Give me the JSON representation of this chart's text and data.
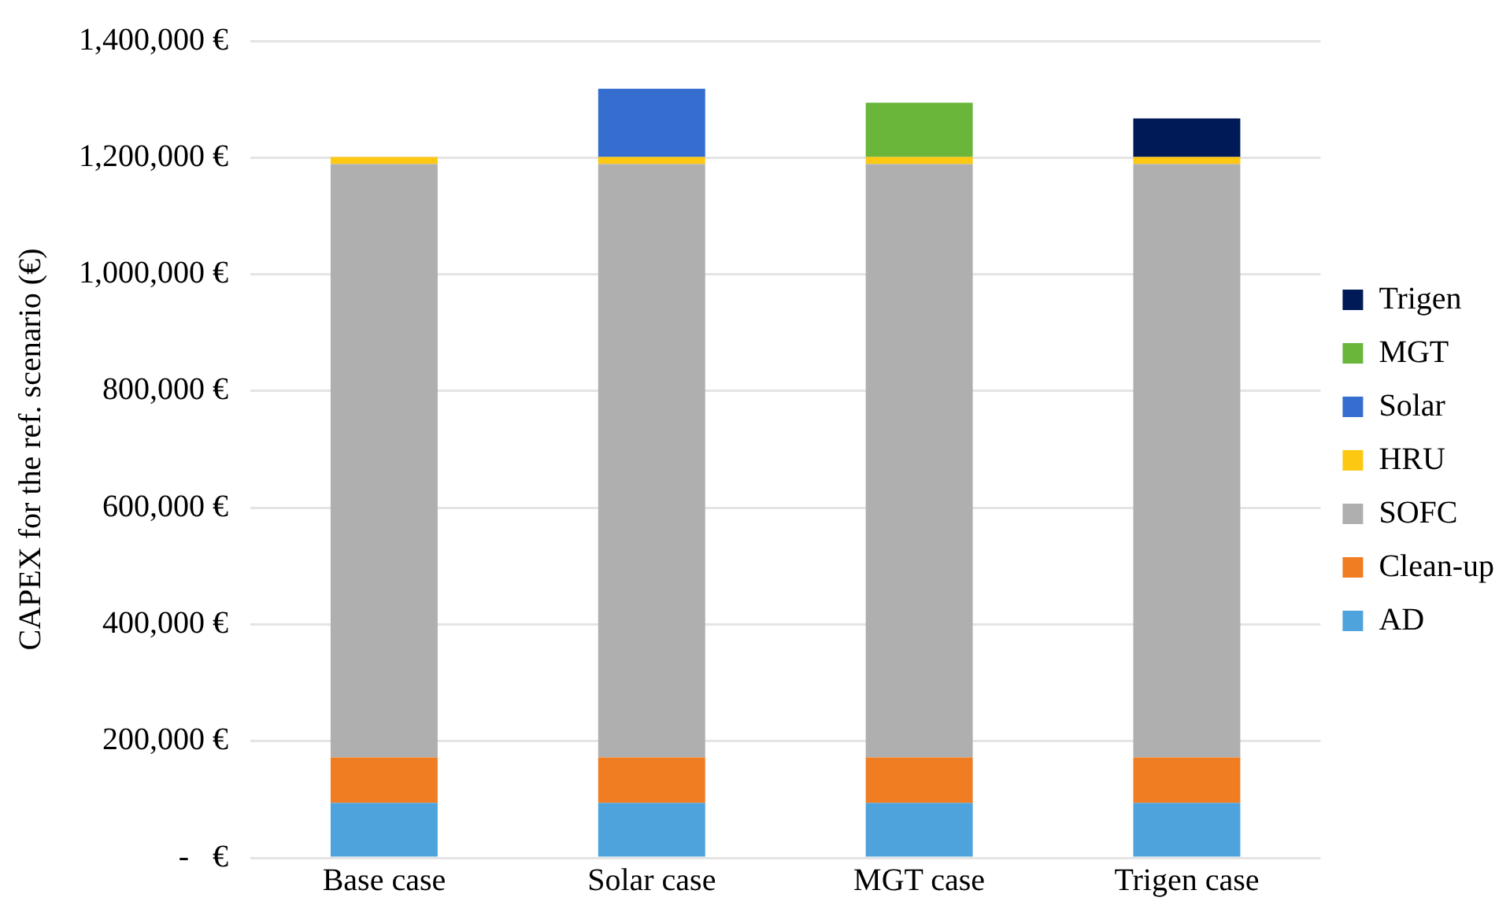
{
  "chart_data": {
    "type": "bar",
    "stacked": true,
    "ylabel": "CAPEX for the ref. scenario (€)",
    "categories": [
      "Base case",
      "Solar case",
      "MGT case",
      "Trigen case"
    ],
    "series": [
      {
        "name": "AD",
        "color": "#4ea3dd",
        "values": [
          94000,
          94000,
          94000,
          94000
        ]
      },
      {
        "name": "Clean-up",
        "color": "#f07d22",
        "values": [
          78000,
          78000,
          78000,
          78000
        ]
      },
      {
        "name": "SOFC",
        "color": "#afafaf",
        "values": [
          1017000,
          1017000,
          1017000,
          1017000
        ]
      },
      {
        "name": "HRU",
        "color": "#fcc812",
        "values": [
          12000,
          12000,
          12000,
          12000
        ]
      },
      {
        "name": "Solar",
        "color": "#356ecf",
        "values": [
          null,
          117000,
          null,
          null
        ]
      },
      {
        "name": "MGT",
        "color": "#69b63b",
        "values": [
          null,
          null,
          93000,
          null
        ]
      },
      {
        "name": "Trigen",
        "color": "#001a57",
        "values": [
          null,
          null,
          null,
          66000
        ]
      }
    ],
    "ylim": [
      0,
      1400000
    ],
    "yticks": [
      {
        "value": 0,
        "label": "-   €"
      },
      {
        "value": 200000,
        "label": "200,000 €"
      },
      {
        "value": 400000,
        "label": "400,000 €"
      },
      {
        "value": 600000,
        "label": "600,000 €"
      },
      {
        "value": 800000,
        "label": "800,000 €"
      },
      {
        "value": 1000000,
        "label": "1,000,000 €"
      },
      {
        "value": 1200000,
        "label": "1,200,000 €"
      },
      {
        "value": 1400000,
        "label": "1,400,000 €"
      }
    ],
    "grid": "y",
    "legend": "right"
  }
}
